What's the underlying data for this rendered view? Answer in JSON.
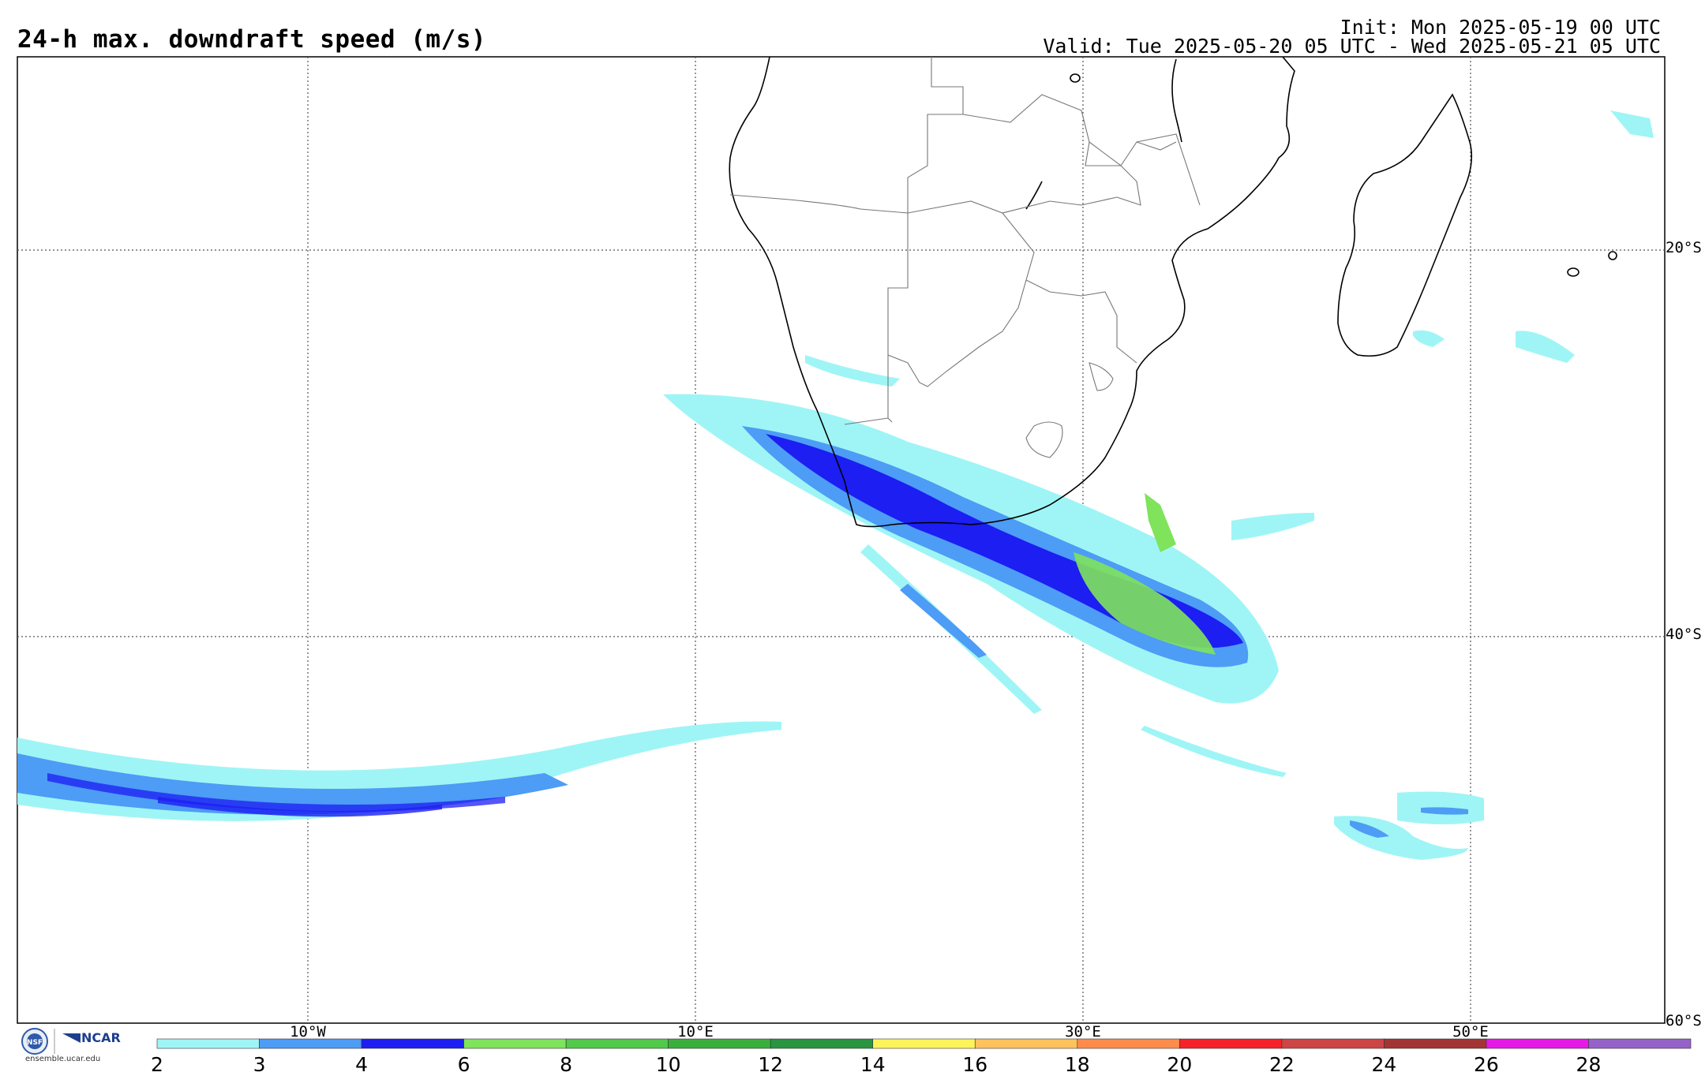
{
  "header": {
    "title": "24-h max. downdraft speed (m/s)",
    "init": "Init: Mon 2025-05-19 00 UTC",
    "valid": "Valid: Tue 2025-05-20 05 UTC - Wed 2025-05-21 05 UTC"
  },
  "map": {
    "lon_range": [
      -25,
      60
    ],
    "lat_range": [
      -60,
      -10
    ],
    "lat_labels": [
      "20°S",
      "40°S",
      "60°S"
    ],
    "lon_labels": [
      "10°W",
      "10°E",
      "30°E",
      "50°E"
    ],
    "lat_lines": [
      -20,
      -40
    ],
    "lon_lines": [
      -10,
      10,
      30,
      50
    ]
  },
  "colorbar": {
    "labels": [
      "2",
      "3",
      "4",
      "6",
      "8",
      "10",
      "12",
      "14",
      "16",
      "18",
      "20",
      "22",
      "24",
      "26",
      "28"
    ],
    "colors": [
      "#9ff5f5",
      "#4d9cf5",
      "#1c1ef2",
      "#7fe35c",
      "#52c94a",
      "#3aae3d",
      "#2a9440",
      "#fff35a",
      "#ffc25d",
      "#ff8c4c",
      "#f5222a",
      "#cd4545",
      "#a33434",
      "#e619e6",
      "#9562c8"
    ]
  },
  "footer": {
    "url": "ensemble.ucar.edu",
    "ncar": "NCAR",
    "nsf": "NSF"
  },
  "icons": [
    "nsf-logo-icon",
    "ncar-logo-icon"
  ]
}
